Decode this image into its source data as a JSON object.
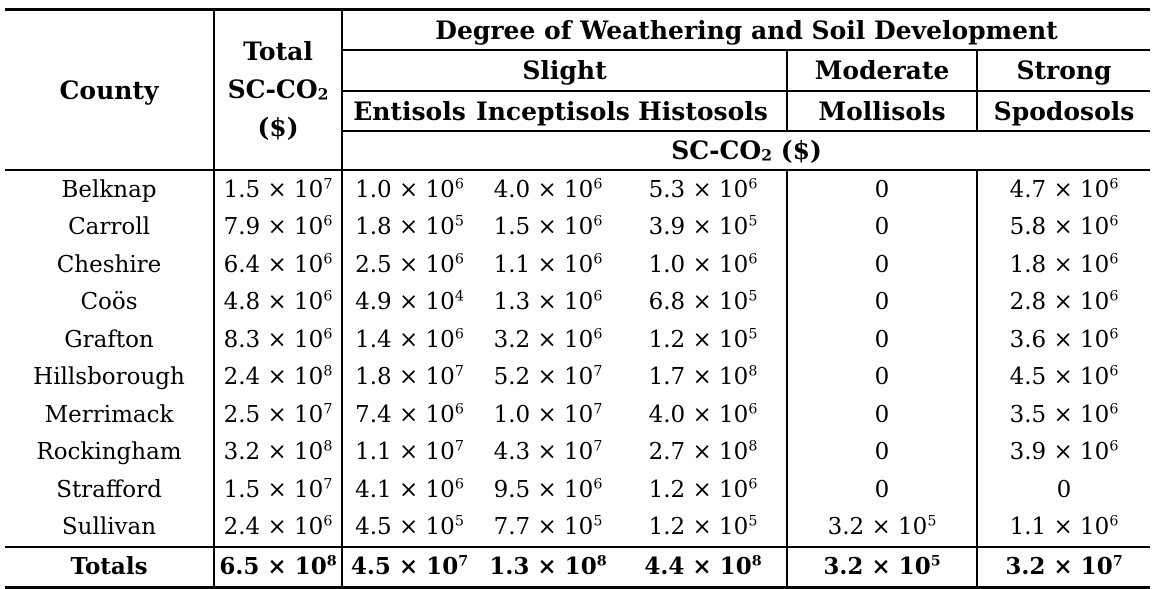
{
  "header": {
    "county": "County",
    "total_line1": "Total",
    "total_line2_base": "SC-CO",
    "total_line2_sub": "2",
    "total_line3": "($)",
    "degree": "Degree of Weathering and Soil Development",
    "slight": "Slight",
    "moderate": "Moderate",
    "strong": "Strong",
    "entisols": "Entisols",
    "inceptisols": "Inceptisols",
    "histosols": "Histosols",
    "mollisols": "Mollisols",
    "spodosols": "Spodosols",
    "sc_base": "SC-CO",
    "sc_sub": "2",
    "sc_unit": "($)"
  },
  "rows": [
    {
      "county": "Belknap",
      "values": [
        [
          "1.5",
          "7"
        ],
        [
          "1.0",
          "6"
        ],
        [
          "4.0",
          "6"
        ],
        [
          "5.3",
          "6"
        ],
        [
          "0",
          ""
        ],
        [
          "4.7",
          "6"
        ]
      ]
    },
    {
      "county": "Carroll",
      "values": [
        [
          "7.9",
          "6"
        ],
        [
          "1.8",
          "5"
        ],
        [
          "1.5",
          "6"
        ],
        [
          "3.9",
          "5"
        ],
        [
          "0",
          ""
        ],
        [
          "5.8",
          "6"
        ]
      ]
    },
    {
      "county": "Cheshire",
      "values": [
        [
          "6.4",
          "6"
        ],
        [
          "2.5",
          "6"
        ],
        [
          "1.1",
          "6"
        ],
        [
          "1.0",
          "6"
        ],
        [
          "0",
          ""
        ],
        [
          "1.8",
          "6"
        ]
      ]
    },
    {
      "county": "Coös",
      "values": [
        [
          "4.8",
          "6"
        ],
        [
          "4.9",
          "4"
        ],
        [
          "1.3",
          "6"
        ],
        [
          "6.8",
          "5"
        ],
        [
          "0",
          ""
        ],
        [
          "2.8",
          "6"
        ]
      ]
    },
    {
      "county": "Grafton",
      "values": [
        [
          "8.3",
          "6"
        ],
        [
          "1.4",
          "6"
        ],
        [
          "3.2",
          "6"
        ],
        [
          "1.2",
          "5"
        ],
        [
          "0",
          ""
        ],
        [
          "3.6",
          "6"
        ]
      ]
    },
    {
      "county": "Hillsborough",
      "values": [
        [
          "2.4",
          "8"
        ],
        [
          "1.8",
          "7"
        ],
        [
          "5.2",
          "7"
        ],
        [
          "1.7",
          "8"
        ],
        [
          "0",
          ""
        ],
        [
          "4.5",
          "6"
        ]
      ]
    },
    {
      "county": "Merrimack",
      "values": [
        [
          "2.5",
          "7"
        ],
        [
          "7.4",
          "6"
        ],
        [
          "1.0",
          "7"
        ],
        [
          "4.0",
          "6"
        ],
        [
          "0",
          ""
        ],
        [
          "3.5",
          "6"
        ]
      ]
    },
    {
      "county": "Rockingham",
      "values": [
        [
          "3.2",
          "8"
        ],
        [
          "1.1",
          "7"
        ],
        [
          "4.3",
          "7"
        ],
        [
          "2.7",
          "8"
        ],
        [
          "0",
          ""
        ],
        [
          "3.9",
          "6"
        ]
      ]
    },
    {
      "county": "Strafford",
      "values": [
        [
          "1.5",
          "7"
        ],
        [
          "4.1",
          "6"
        ],
        [
          "9.5",
          "6"
        ],
        [
          "1.2",
          "6"
        ],
        [
          "0",
          ""
        ],
        [
          "0",
          ""
        ]
      ]
    },
    {
      "county": "Sullivan",
      "values": [
        [
          "2.4",
          "6"
        ],
        [
          "4.5",
          "5"
        ],
        [
          "7.7",
          "5"
        ],
        [
          "1.2",
          "5"
        ],
        [
          "3.2",
          "5"
        ],
        [
          "1.1",
          "6"
        ]
      ]
    }
  ],
  "totals": {
    "county": "Totals",
    "values": [
      [
        "6.5",
        "8"
      ],
      [
        "4.5",
        "7"
      ],
      [
        "1.3",
        "8"
      ],
      [
        "4.4",
        "8"
      ],
      [
        "3.2",
        "5"
      ],
      [
        "3.2",
        "7"
      ]
    ]
  },
  "times_sign": "× 10"
}
